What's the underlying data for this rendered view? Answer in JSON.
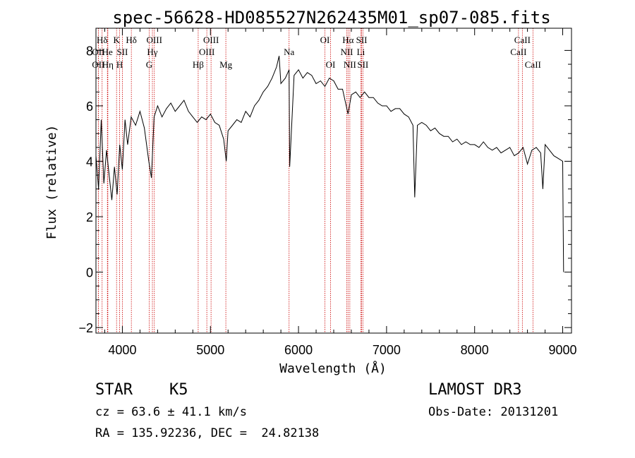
{
  "chart_data": {
    "type": "line",
    "title": "spec-56628-HD085527N262435M01_sp07-085.fits",
    "xlabel": "Wavelength (Å)",
    "ylabel": "Flux (relative)",
    "xlim": [
      3700,
      9100
    ],
    "ylim": [
      -2.2,
      8.8
    ],
    "xticks": [
      4000,
      5000,
      6000,
      7000,
      8000,
      9000
    ],
    "xtick_labels": [
      "4000",
      "5000",
      "6000",
      "7000",
      "8000",
      "9000"
    ],
    "yticks": [
      -2,
      0,
      2,
      4,
      6,
      8
    ],
    "ytick_labels": [
      "−2",
      "0",
      "2",
      "4",
      "6",
      "8"
    ],
    "series": [
      {
        "name": "flux",
        "x": [
          3700,
          3730,
          3760,
          3790,
          3820,
          3850,
          3880,
          3910,
          3940,
          3970,
          4000,
          4030,
          4060,
          4100,
          4150,
          4200,
          4250,
          4300,
          4330,
          4360,
          4400,
          4450,
          4500,
          4550,
          4600,
          4650,
          4700,
          4750,
          4800,
          4850,
          4900,
          4950,
          5000,
          5050,
          5100,
          5150,
          5180,
          5200,
          5250,
          5300,
          5350,
          5400,
          5450,
          5500,
          5550,
          5600,
          5650,
          5700,
          5750,
          5780,
          5800,
          5850,
          5893,
          5900,
          5950,
          6000,
          6050,
          6100,
          6150,
          6200,
          6250,
          6300,
          6350,
          6400,
          6450,
          6500,
          6563,
          6600,
          6650,
          6700,
          6750,
          6800,
          6850,
          6900,
          6950,
          7000,
          7050,
          7100,
          7150,
          7200,
          7250,
          7300,
          7320,
          7350,
          7400,
          7450,
          7500,
          7550,
          7600,
          7650,
          7700,
          7750,
          7800,
          7850,
          7900,
          7950,
          8000,
          8050,
          8100,
          8150,
          8200,
          8250,
          8300,
          8350,
          8400,
          8450,
          8500,
          8550,
          8600,
          8650,
          8700,
          8750,
          8775,
          8800,
          8850,
          8900,
          8950,
          9000,
          9005,
          9010
        ],
        "y": [
          4.2,
          3.0,
          5.5,
          3.2,
          4.4,
          3.5,
          2.6,
          3.8,
          2.8,
          4.6,
          3.7,
          5.5,
          4.6,
          5.6,
          5.3,
          5.8,
          5.2,
          4.0,
          3.4,
          5.6,
          6.0,
          5.6,
          5.9,
          6.1,
          5.8,
          6.0,
          6.2,
          5.8,
          5.6,
          5.4,
          5.6,
          5.5,
          5.7,
          5.4,
          5.3,
          4.8,
          4.0,
          5.1,
          5.3,
          5.5,
          5.4,
          5.8,
          5.6,
          6.0,
          6.2,
          6.5,
          6.7,
          7.0,
          7.4,
          7.8,
          6.8,
          7.0,
          7.3,
          3.8,
          7.1,
          7.3,
          7.0,
          7.2,
          7.1,
          6.8,
          6.9,
          6.7,
          7.0,
          6.9,
          6.6,
          6.6,
          5.7,
          6.4,
          6.5,
          6.3,
          6.5,
          6.3,
          6.3,
          6.1,
          6.0,
          6.0,
          5.8,
          5.9,
          5.9,
          5.7,
          5.6,
          5.3,
          2.7,
          5.3,
          5.4,
          5.3,
          5.1,
          5.2,
          5.0,
          4.9,
          4.9,
          4.7,
          4.8,
          4.6,
          4.7,
          4.6,
          4.6,
          4.5,
          4.7,
          4.5,
          4.4,
          4.5,
          4.3,
          4.4,
          4.5,
          4.2,
          4.3,
          4.5,
          3.9,
          4.4,
          4.5,
          4.3,
          3.0,
          4.6,
          4.4,
          4.2,
          4.1,
          4.0,
          2.0,
          0.0
        ]
      }
    ],
    "spectral_lines": [
      {
        "label": "Hδ",
        "wavelength": 3770,
        "row": 0
      },
      {
        "label": "OII",
        "wavelength": 3727,
        "row": 1
      },
      {
        "label": "OII",
        "wavelength": 3727,
        "row": 2
      },
      {
        "label": "He",
        "wavelength": 3830,
        "row": 1
      },
      {
        "label": "Hη",
        "wavelength": 3835,
        "row": 2
      },
      {
        "label": "K",
        "wavelength": 3934,
        "row": 0
      },
      {
        "label": "SII",
        "wavelength": 4000,
        "row": 1
      },
      {
        "label": "H",
        "wavelength": 3969,
        "row": 2
      },
      {
        "label": "Hδ",
        "wavelength": 4102,
        "row": 0
      },
      {
        "label": "OIII",
        "wavelength": 4363,
        "row": 0
      },
      {
        "label": "Hγ",
        "wavelength": 4341,
        "row": 1
      },
      {
        "label": "G",
        "wavelength": 4304,
        "row": 2
      },
      {
        "label": "Hβ",
        "wavelength": 4861,
        "row": 2
      },
      {
        "label": "OIII",
        "wavelength": 4959,
        "row": 1
      },
      {
        "label": "OIII",
        "wavelength": 5007,
        "row": 0
      },
      {
        "label": "Mg",
        "wavelength": 5175,
        "row": 2
      },
      {
        "label": "Na",
        "wavelength": 5893,
        "row": 1
      },
      {
        "label": "OI",
        "wavelength": 6300,
        "row": 0
      },
      {
        "label": "OI",
        "wavelength": 6364,
        "row": 2
      },
      {
        "label": "Hα",
        "wavelength": 6563,
        "row": 0
      },
      {
        "label": "NII",
        "wavelength": 6548,
        "row": 1
      },
      {
        "label": "NII",
        "wavelength": 6583,
        "row": 2
      },
      {
        "label": "SII",
        "wavelength": 6717,
        "row": 0
      },
      {
        "label": "Li",
        "wavelength": 6708,
        "row": 1
      },
      {
        "label": "SII",
        "wavelength": 6731,
        "row": 2
      },
      {
        "label": "CaII",
        "wavelength": 8542,
        "row": 0
      },
      {
        "label": "CaII",
        "wavelength": 8498,
        "row": 1
      },
      {
        "label": "CaII",
        "wavelength": 8662,
        "row": 2
      }
    ]
  },
  "info": {
    "object_class": "STAR",
    "subclass": "K5",
    "survey": "LAMOST DR3",
    "redshift": "cz = 63.6 ± 41.1 km/s",
    "obs_date": "Obs-Date: 20131201",
    "coords": "RA = 135.92236, DEC =  24.82138"
  },
  "colors": {
    "line_marker": "#cc0000",
    "spectrum": "#000000"
  }
}
